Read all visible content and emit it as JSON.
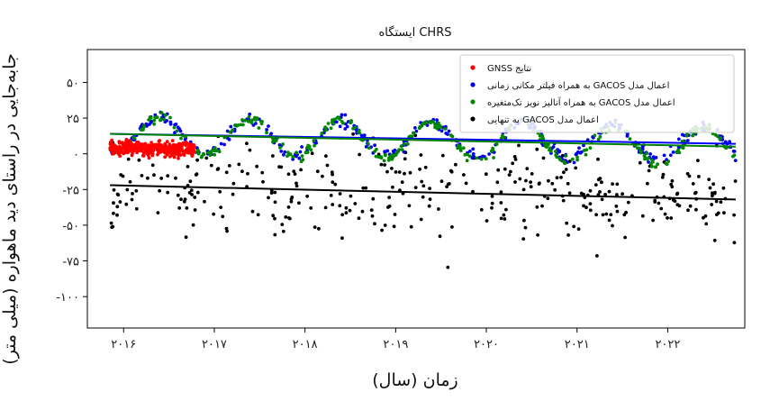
{
  "chart_data": {
    "type": "scatter",
    "title": "ایستگاه CHRS",
    "xlabel": "زمان (سال)",
    "ylabel": "جابه‌جایی در راستای دید ماهواره (میلی متر)",
    "xlim": [
      2015.6,
      2022.85
    ],
    "ylim": [
      -122,
      73
    ],
    "x_ticks": [
      2016,
      2017,
      2018,
      2019,
      2020,
      2021,
      2022
    ],
    "x_tick_labels": [
      "۲۰۱۶",
      "۲۰۱۷",
      "۲۰۱۸",
      "۲۰۱۹",
      "۲۰۲۰",
      "۲۰۲۱",
      "۲۰۲۲"
    ],
    "y_ticks": [
      50,
      25,
      0,
      -25,
      -50,
      -75,
      -100
    ],
    "y_tick_labels": [
      "۵۰",
      "۲۵",
      "۰",
      "-۲۵",
      "-۵۰",
      "-۷۵",
      "-۱۰۰"
    ],
    "legend_position": "top-right",
    "series": [
      {
        "name": "نتایج GNSS",
        "color": "#ff0000",
        "x_range": [
          2015.85,
          2016.78
        ],
        "trend": [
          [
            2015.85,
            4
          ],
          [
            2016.78,
            3
          ]
        ],
        "noise": 3.5,
        "count": 380
      },
      {
        "name": "اعمال مدل GACOS به همراه فیلتر مکانی زمانی",
        "color": "#0000ee",
        "x_range": [
          2015.85,
          2022.75
        ],
        "trend": [
          [
            2015.85,
            14
          ],
          [
            2022.75,
            7
          ]
        ],
        "seasonal_amplitude": 12,
        "noise": 3,
        "count": 340
      },
      {
        "name": "اعمال مدل GACOS به همراه آنالیز نویز تک‌متغیره",
        "color": "#008800",
        "x_range": [
          2015.85,
          2022.75
        ],
        "trend": [
          [
            2015.85,
            14
          ],
          [
            2022.75,
            5
          ]
        ],
        "seasonal_amplitude": 13,
        "noise": 2.5,
        "count": 340
      },
      {
        "name": "اعمال مدل GACOS به تنهایی",
        "color": "#000000",
        "x_range": [
          2015.85,
          2022.75
        ],
        "trend": [
          [
            2015.85,
            -22
          ],
          [
            2022.75,
            -32
          ]
        ],
        "noise": 24,
        "count": 360
      }
    ],
    "trend_lines": [
      {
        "color": "#0000ff",
        "points": [
          [
            2015.85,
            14
          ],
          [
            2022.75,
            7
          ]
        ]
      },
      {
        "color": "#008000",
        "points": [
          [
            2015.85,
            14
          ],
          [
            2022.75,
            5
          ]
        ]
      },
      {
        "color": "#000000",
        "points": [
          [
            2015.85,
            -22
          ],
          [
            2022.75,
            -32
          ]
        ]
      }
    ]
  }
}
